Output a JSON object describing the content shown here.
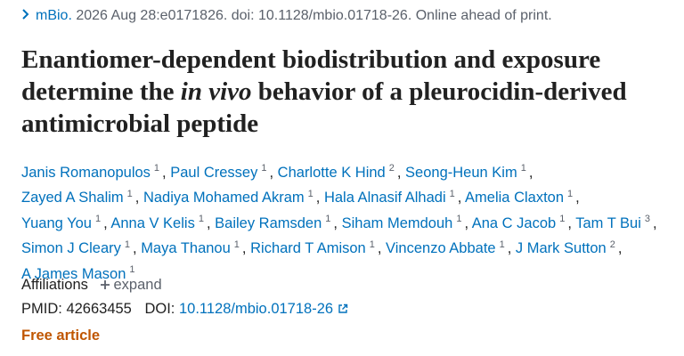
{
  "citation": {
    "journal": "mBio.",
    "details": "2026 Aug 28:e0171826. doi: 10.1128/mbio.01718-26. Online ahead of print."
  },
  "title": {
    "before": "Enantiomer-dependent biodistribution and exposure determine the",
    "italic": "in vivo",
    "after": "behavior of a pleurocidin-derived antimicrobial peptide"
  },
  "authors": {
    "separator": ",",
    "list": [
      {
        "name": "Janis Romanopulos",
        "aff": 1
      },
      {
        "name": "Paul Cressey",
        "aff": 1
      },
      {
        "name": "Charlotte K Hind",
        "aff": 2
      },
      {
        "name": "Seong-Heun Kim",
        "aff": 1
      },
      {
        "name": "Zayed A Shalim",
        "aff": 1
      },
      {
        "name": "Nadiya Mohamed Akram",
        "aff": 1
      },
      {
        "name": "Hala Alnasif Alhadi",
        "aff": 1
      },
      {
        "name": "Amelia Claxton",
        "aff": 1
      },
      {
        "name": "Yuang You",
        "aff": 1
      },
      {
        "name": "Anna V Kelis",
        "aff": 1
      },
      {
        "name": "Bailey Ramsden",
        "aff": 1
      },
      {
        "name": "Siham Memdouh",
        "aff": 1
      },
      {
        "name": "Ana C Jacob",
        "aff": 1
      },
      {
        "name": "Tam T Bui",
        "aff": 3
      },
      {
        "name": "Simon J Cleary",
        "aff": 1
      },
      {
        "name": "Maya Thanou",
        "aff": 1
      },
      {
        "name": "Richard T Amison",
        "aff": 1
      },
      {
        "name": "Vincenzo Abbate",
        "aff": 1
      },
      {
        "name": "J Mark Sutton",
        "aff": 2
      },
      {
        "name": "A James Mason",
        "aff": 1
      }
    ]
  },
  "affiliations": {
    "label": "Affiliations",
    "expand": "expand"
  },
  "identifiers": {
    "pmid_label": "PMID:",
    "pmid": "42663455",
    "doi_label": "DOI:",
    "doi": "10.1128/mbio.01718-26"
  },
  "free": "Free article"
}
